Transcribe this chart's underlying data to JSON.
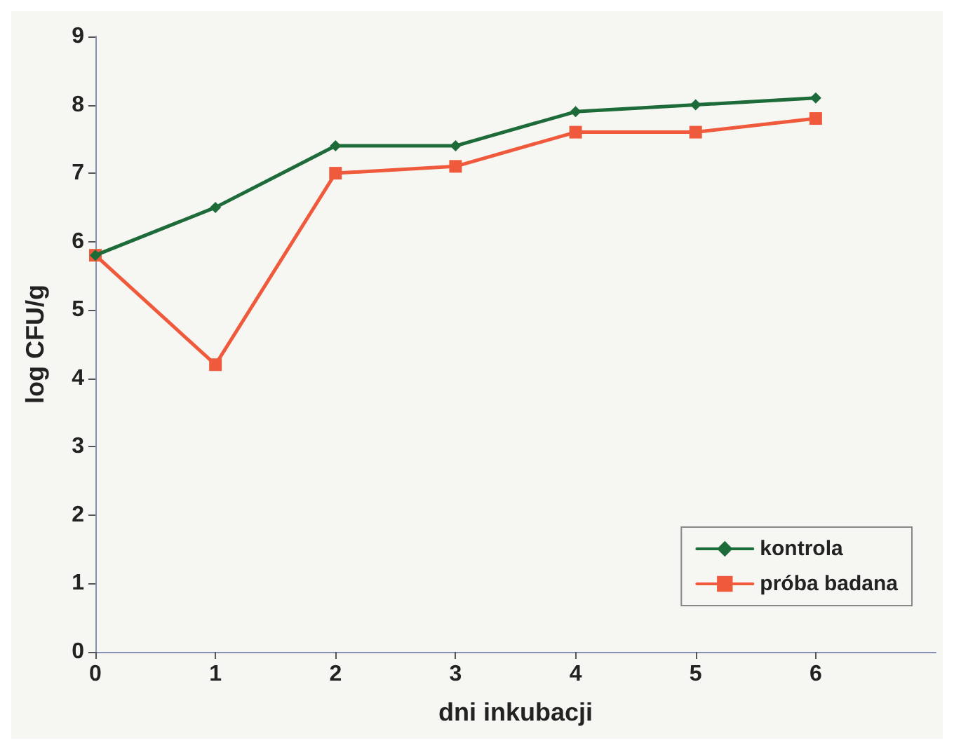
{
  "chart_data": {
    "type": "line",
    "xlabel": "dni inkubacji",
    "ylabel": "log CFU/g",
    "x": [
      0,
      1,
      2,
      3,
      4,
      5,
      6
    ],
    "xlim": [
      0,
      7
    ],
    "xticks": [
      0,
      1,
      2,
      3,
      4,
      5,
      6
    ],
    "ylim": [
      0,
      9
    ],
    "yticks": [
      0,
      1,
      2,
      3,
      4,
      5,
      6,
      7,
      8,
      9
    ],
    "grid": false,
    "legend": "bottom right",
    "line_style": "solid",
    "series": [
      {
        "name": "kontrola",
        "color": "#1e6b3a",
        "marker": "diamond",
        "values": [
          5.8,
          6.5,
          7.4,
          7.4,
          7.9,
          8.0,
          8.1
        ]
      },
      {
        "name": "próba badana",
        "color": "#f05a3c",
        "marker": "square",
        "values": [
          5.8,
          4.2,
          7.0,
          7.1,
          7.6,
          7.6,
          7.8
        ]
      }
    ]
  }
}
